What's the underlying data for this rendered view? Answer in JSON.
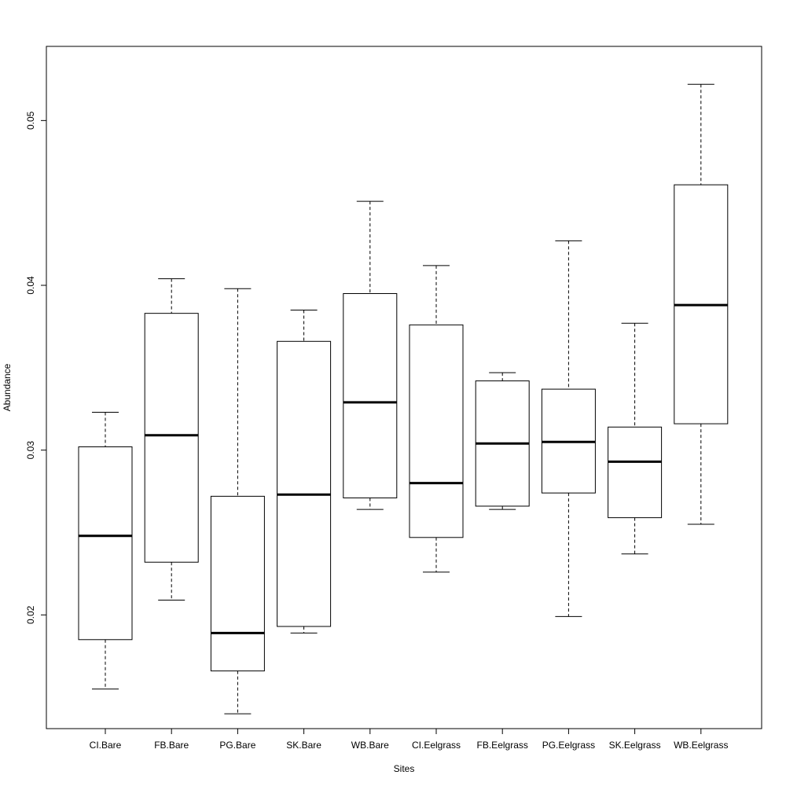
{
  "chart_data": {
    "type": "box",
    "xlabel": "Sites",
    "ylabel": "Abundance",
    "categories": [
      "CI.Bare",
      "FB.Bare",
      "PG.Bare",
      "SK.Bare",
      "WB.Bare",
      "CI.Eelgrass",
      "FB.Eelgrass",
      "PG.Eelgrass",
      "SK.Eelgrass",
      "WB.Eelgrass"
    ],
    "boxes": [
      {
        "min": 0.0155,
        "q1": 0.0185,
        "median": 0.0248,
        "q3": 0.0302,
        "max": 0.0323
      },
      {
        "min": 0.0209,
        "q1": 0.0232,
        "median": 0.0309,
        "q3": 0.0383,
        "max": 0.0404
      },
      {
        "min": 0.014,
        "q1": 0.0166,
        "median": 0.0189,
        "q3": 0.0272,
        "max": 0.0398
      },
      {
        "min": 0.0189,
        "q1": 0.0193,
        "median": 0.0273,
        "q3": 0.0366,
        "max": 0.0385
      },
      {
        "min": 0.0264,
        "q1": 0.0271,
        "median": 0.0329,
        "q3": 0.0395,
        "max": 0.0451
      },
      {
        "min": 0.0226,
        "q1": 0.0247,
        "median": 0.028,
        "q3": 0.0376,
        "max": 0.0412
      },
      {
        "min": 0.0264,
        "q1": 0.0266,
        "median": 0.0304,
        "q3": 0.0342,
        "max": 0.0347
      },
      {
        "min": 0.0199,
        "q1": 0.0274,
        "median": 0.0305,
        "q3": 0.0337,
        "max": 0.0427
      },
      {
        "min": 0.0237,
        "q1": 0.0259,
        "median": 0.0293,
        "q3": 0.0314,
        "max": 0.0377
      },
      {
        "min": 0.0255,
        "q1": 0.0316,
        "median": 0.0388,
        "q3": 0.0461,
        "max": 0.0522
      }
    ],
    "yticks": [
      "0.02",
      "0.03",
      "0.04",
      "0.05"
    ],
    "ylim": [
      0.0131,
      0.0545
    ],
    "grid": false,
    "colors": {
      "box_fill": "#ffffff",
      "stroke": "#000000"
    }
  }
}
